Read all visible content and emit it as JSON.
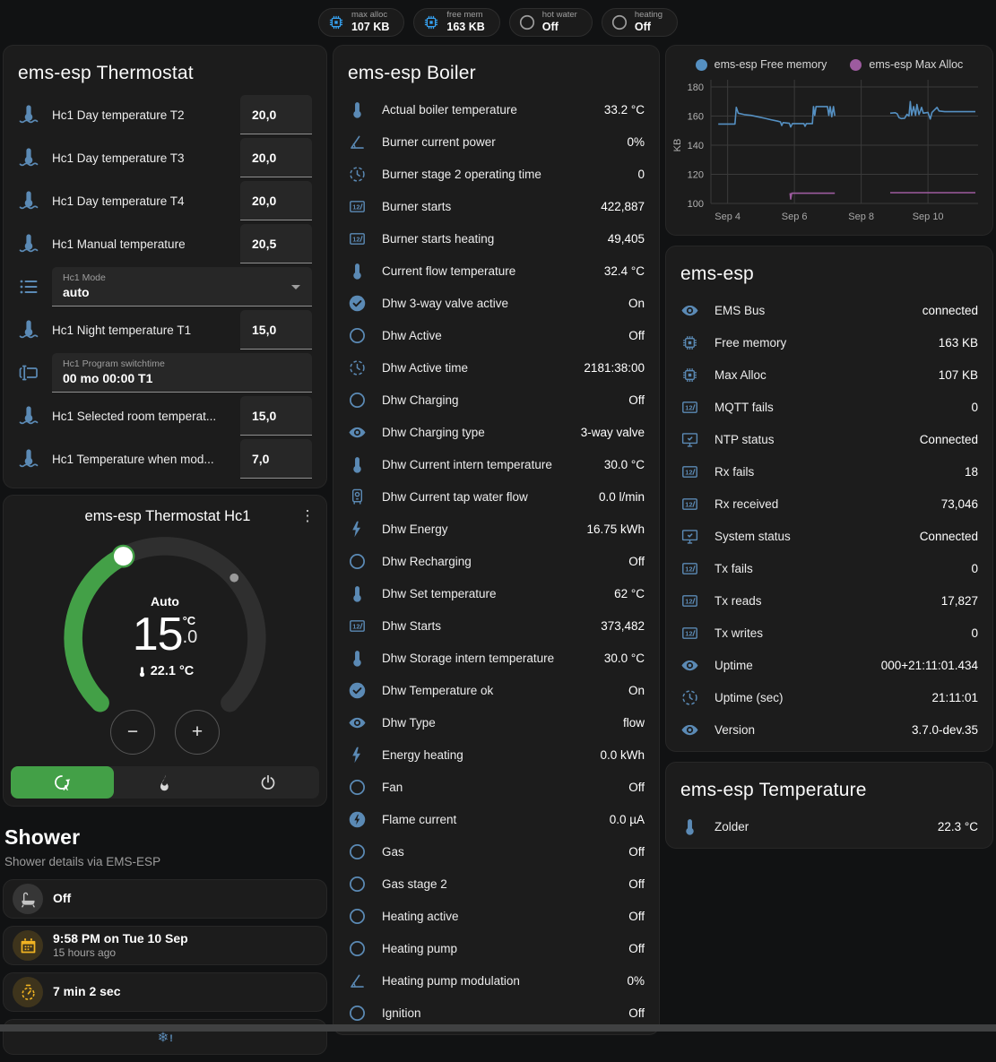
{
  "badges": [
    {
      "icon": "chip",
      "icon_color": "blue",
      "label": "max alloc",
      "value": "107 KB"
    },
    {
      "icon": "chip",
      "icon_color": "blue",
      "label": "free mem",
      "value": "163 KB"
    },
    {
      "icon": "circle-outline",
      "icon_color": "grey",
      "label": "hot water",
      "value": "Off"
    },
    {
      "icon": "circle-outline",
      "icon_color": "grey",
      "label": "heating",
      "value": "Off"
    }
  ],
  "thermostat_card": {
    "title": "ems-esp Thermostat",
    "rows": [
      {
        "type": "number",
        "icon": "thermometer-water",
        "label": "Hc1 Day temperature T2",
        "value": "20,0"
      },
      {
        "type": "number",
        "icon": "thermometer-water",
        "label": "Hc1 Day temperature T3",
        "value": "20,0"
      },
      {
        "type": "number",
        "icon": "thermometer-water",
        "label": "Hc1 Day temperature T4",
        "value": "20,0"
      },
      {
        "type": "number",
        "icon": "thermometer-water",
        "label": "Hc1 Manual temperature",
        "value": "20,5"
      },
      {
        "type": "select",
        "icon": "format-list",
        "label": "Hc1 Mode",
        "value": "auto"
      },
      {
        "type": "number",
        "icon": "thermometer-water",
        "label": "Hc1 Night temperature T1",
        "value": "15,0"
      },
      {
        "type": "text",
        "icon": "form-textbox",
        "label": "Hc1 Program switchtime",
        "value": "00 mo 00:00 T1"
      },
      {
        "type": "number",
        "icon": "thermometer-water",
        "label": "Hc1 Selected room temperat...",
        "value": "15,0"
      },
      {
        "type": "number",
        "icon": "thermometer-water",
        "label": "Hc1 Temperature when mod...",
        "value": "7,0"
      }
    ]
  },
  "hc1_card": {
    "title": "ems-esp Thermostat Hc1",
    "mode_label": "Auto",
    "target_int": "15",
    "target_decimal": ".0",
    "target_unit": "°C",
    "ambient": "22.1 °C",
    "minus_label": "−",
    "plus_label": "+",
    "modes": [
      {
        "icon": "thermostat-auto",
        "state": "active"
      },
      {
        "icon": "fire",
        "state": "idle"
      },
      {
        "icon": "power",
        "state": "idle"
      }
    ]
  },
  "shower": {
    "title": "Shower",
    "subtitle": "Shower details via EMS-ESP",
    "tiles": [
      {
        "variant": "standard",
        "icon": "shower",
        "icon_style": "grey",
        "primary": "Off",
        "secondary": ""
      },
      {
        "variant": "standard",
        "icon": "calendar",
        "icon_style": "amber",
        "primary": "9:58 PM on Tue 10 Sep",
        "secondary": "15 hours ago"
      },
      {
        "variant": "standard",
        "icon": "timer",
        "icon_style": "amber",
        "primary": "7 min 2 sec",
        "secondary": ""
      },
      {
        "variant": "center",
        "icon": "snowflake-alert",
        "icon_style": "plain-blue",
        "primary": "",
        "secondary": ""
      }
    ]
  },
  "boiler_card": {
    "title": "ems-esp Boiler",
    "rows": [
      {
        "icon": "thermometer",
        "label": "Actual boiler temperature",
        "value": "33.2 °C"
      },
      {
        "icon": "angle-acute",
        "label": "Burner current power",
        "value": "0%"
      },
      {
        "icon": "clock",
        "label": "Burner stage 2 operating time",
        "value": "0"
      },
      {
        "icon": "counter",
        "label": "Burner starts",
        "value": "422,887"
      },
      {
        "icon": "counter",
        "label": "Burner starts heating",
        "value": "49,405"
      },
      {
        "icon": "thermometer",
        "label": "Current flow temperature",
        "value": "32.4 °C"
      },
      {
        "icon": "check-circle",
        "label": "Dhw 3-way valve active",
        "value": "On"
      },
      {
        "icon": "circle-outline",
        "label": "Dhw Active",
        "value": "Off"
      },
      {
        "icon": "clock",
        "label": "Dhw Active time",
        "value": "2181:38:00"
      },
      {
        "icon": "circle-outline",
        "label": "Dhw Charging",
        "value": "Off"
      },
      {
        "icon": "eye",
        "label": "Dhw Charging type",
        "value": "3-way valve"
      },
      {
        "icon": "thermometer",
        "label": "Dhw Current intern temperature",
        "value": "30.0 °C"
      },
      {
        "icon": "water-boiler",
        "label": "Dhw Current tap water flow",
        "value": "0.0 l/min"
      },
      {
        "icon": "flash",
        "label": "Dhw Energy",
        "value": "16.75 kWh"
      },
      {
        "icon": "circle-outline",
        "label": "Dhw Recharging",
        "value": "Off"
      },
      {
        "icon": "thermometer",
        "label": "Dhw Set temperature",
        "value": "62 °C"
      },
      {
        "icon": "counter",
        "label": "Dhw Starts",
        "value": "373,482"
      },
      {
        "icon": "thermometer",
        "label": "Dhw Storage intern temperature",
        "value": "30.0 °C"
      },
      {
        "icon": "check-circle",
        "label": "Dhw Temperature ok",
        "value": "On"
      },
      {
        "icon": "eye",
        "label": "Dhw Type",
        "value": "flow"
      },
      {
        "icon": "flash",
        "label": "Energy heating",
        "value": "0.0 kWh"
      },
      {
        "icon": "circle-outline",
        "label": "Fan",
        "value": "Off"
      },
      {
        "icon": "flash-circle",
        "label": "Flame current",
        "value": "0.0 µA"
      },
      {
        "icon": "circle-outline",
        "label": "Gas",
        "value": "Off"
      },
      {
        "icon": "circle-outline",
        "label": "Gas stage 2",
        "value": "Off"
      },
      {
        "icon": "circle-outline",
        "label": "Heating active",
        "value": "Off"
      },
      {
        "icon": "circle-outline",
        "label": "Heating pump",
        "value": "Off"
      },
      {
        "icon": "angle-acute",
        "label": "Heating pump modulation",
        "value": "0%"
      },
      {
        "icon": "circle-outline",
        "label": "Ignition",
        "value": "Off"
      }
    ]
  },
  "chart_data": {
    "type": "line",
    "title": "",
    "xlabel": "",
    "ylabel": "KB",
    "legend_position": "top",
    "grid": true,
    "y_ticks": [
      100,
      120,
      140,
      160,
      180
    ],
    "x_ticks": [
      {
        "x": 4,
        "label": "Sep 4"
      },
      {
        "x": 6,
        "label": "Sep 6"
      },
      {
        "x": 8,
        "label": "Sep 8"
      },
      {
        "x": 10,
        "label": "Sep 10"
      }
    ],
    "x_range": [
      3.5,
      11.5
    ],
    "y_range": [
      100,
      180
    ],
    "series": [
      {
        "name": "ems-esp Free memory",
        "color": "#5590c2",
        "segments": [
          [
            [
              3.72,
              154.5
            ],
            [
              4.22,
              154.5
            ],
            [
              4.26,
              166
            ],
            [
              4.32,
              162
            ],
            [
              4.5,
              161
            ],
            [
              4.7,
              160.5
            ],
            [
              4.9,
              159.5
            ],
            [
              5.1,
              158.5
            ],
            [
              5.3,
              157.5
            ],
            [
              5.5,
              156.5
            ],
            [
              5.58,
              156
            ],
            [
              5.62,
              153.5
            ],
            [
              5.66,
              155.5
            ],
            [
              5.85,
              155
            ],
            [
              5.89,
              152.5
            ],
            [
              5.94,
              154.8
            ],
            [
              6.28,
              154.8
            ],
            [
              6.32,
              153
            ],
            [
              6.36,
              154.8
            ],
            [
              6.54,
              154.8
            ],
            [
              6.57,
              166.5
            ],
            [
              6.61,
              160.5
            ],
            [
              6.65,
              166.5
            ],
            [
              6.99,
              166.5
            ],
            [
              7.03,
              160.5
            ],
            [
              7.07,
              166.5
            ],
            [
              7.12,
              159.5
            ],
            [
              7.17,
              166.5
            ],
            [
              7.21,
              160.2
            ]
          ],
          [
            [
              8.87,
              162
            ],
            [
              9.02,
              162.3
            ],
            [
              9.08,
              161.5
            ],
            [
              9.13,
              159
            ],
            [
              9.2,
              158.3
            ],
            [
              9.3,
              158.5
            ],
            [
              9.37,
              161.2
            ],
            [
              9.43,
              160
            ],
            [
              9.47,
              170
            ],
            [
              9.51,
              160.5
            ],
            [
              9.57,
              166.5
            ],
            [
              9.63,
              160.5
            ],
            [
              9.67,
              168
            ],
            [
              9.73,
              161
            ],
            [
              9.81,
              166
            ],
            [
              9.86,
              162
            ],
            [
              10.0,
              162.5
            ],
            [
              10.07,
              158
            ],
            [
              10.12,
              162.5
            ],
            [
              10.27,
              166
            ],
            [
              10.33,
              163.5
            ],
            [
              10.5,
              163
            ],
            [
              11.42,
              163
            ]
          ]
        ]
      },
      {
        "name": "ems-esp Max Alloc",
        "color": "#9d5b9f",
        "segments": [
          [
            [
              5.87,
              107
            ],
            [
              5.89,
              103
            ],
            [
              5.92,
              107
            ],
            [
              7.21,
              107
            ]
          ],
          [
            [
              8.87,
              107.4
            ],
            [
              11.42,
              107.4
            ]
          ]
        ]
      }
    ]
  },
  "esp_card": {
    "title": "ems-esp",
    "rows": [
      {
        "icon": "eye",
        "label": "EMS Bus",
        "value": "connected"
      },
      {
        "icon": "chip",
        "label": "Free memory",
        "value": "163 KB"
      },
      {
        "icon": "chip",
        "label": "Max Alloc",
        "value": "107 KB"
      },
      {
        "icon": "counter",
        "label": "MQTT fails",
        "value": "0"
      },
      {
        "icon": "monitor",
        "label": "NTP status",
        "value": "Connected"
      },
      {
        "icon": "counter",
        "label": "Rx fails",
        "value": "18"
      },
      {
        "icon": "counter",
        "label": "Rx received",
        "value": "73,046"
      },
      {
        "icon": "monitor",
        "label": "System status",
        "value": "Connected"
      },
      {
        "icon": "counter",
        "label": "Tx fails",
        "value": "0"
      },
      {
        "icon": "counter",
        "label": "Tx reads",
        "value": "17,827"
      },
      {
        "icon": "counter",
        "label": "Tx writes",
        "value": "0"
      },
      {
        "icon": "eye",
        "label": "Uptime",
        "value": "000+21:11:01.434"
      },
      {
        "icon": "clock",
        "label": "Uptime (sec)",
        "value": "21:11:01"
      },
      {
        "icon": "eye",
        "label": "Version",
        "value": "3.7.0-dev.35"
      }
    ]
  },
  "temp_card": {
    "title": "ems-esp Temperature",
    "rows": [
      {
        "icon": "thermometer",
        "label": "Zolder",
        "value": "22.3 °C"
      }
    ]
  },
  "colors": {
    "accent_green": "#43a047",
    "row_icon_blue": "#5b8ab5",
    "badge_icon_blue": "#36a1f0",
    "amber": "#f0b322",
    "chart_blue": "#5590c2",
    "chart_purple": "#9d5b9f"
  }
}
